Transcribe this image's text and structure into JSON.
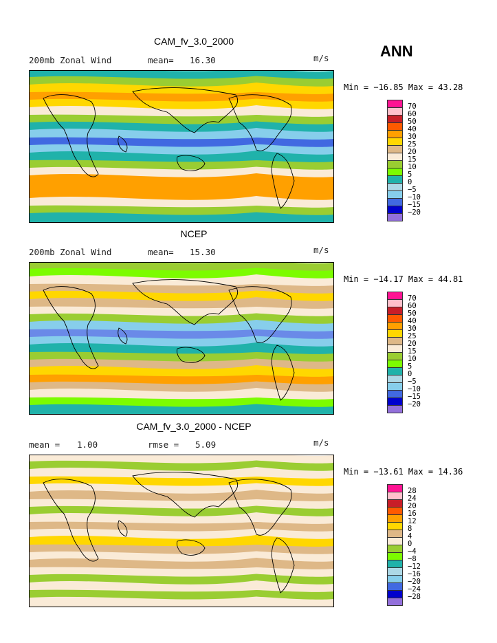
{
  "season": "ANN",
  "units": "m/s",
  "panels": [
    {
      "title": "CAM_fv_3.0_2000",
      "left_label": "200mb Zonal Wind",
      "stat_label": "mean=",
      "stat_value": "16.30",
      "min_max": "Min = −16.85 Max =   43.28",
      "legend_labels": [
        "70",
        "60",
        "50",
        "40",
        "30",
        "25",
        "20",
        "15",
        "10",
        "5",
        "0",
        "−5",
        "−10",
        "−15",
        "−20"
      ],
      "legend_colors": [
        "#ff1493",
        "#ffc0cb",
        "#c81e28",
        "#ff5a00",
        "#ffa000",
        "#ffd700",
        "#deb887",
        "#faebd7",
        "#9acd32",
        "#7cfc00",
        "#20b2aa",
        "#add8e6",
        "#87ceeb",
        "#4169e1",
        "#0000cd",
        "#9370db"
      ],
      "bands": [
        "#20b2aa",
        "#9acd32",
        "#ffd700",
        "#ffa000",
        "#ffd700",
        "#faebd7",
        "#9acd32",
        "#20b2aa",
        "#87ceeb",
        "#4169e1",
        "#87ceeb",
        "#20b2aa",
        "#9acd32",
        "#faebd7",
        "#ffa000",
        "#ffa000",
        "#ffa000",
        "#faebd7",
        "#9acd32",
        "#20b2aa"
      ]
    },
    {
      "title": "NCEP",
      "left_label": "200mb Zonal Wind",
      "stat_label": "mean=",
      "stat_value": "15.30",
      "min_max": "Min = −14.17 Max =   44.81",
      "legend_labels": [
        "70",
        "60",
        "50",
        "40",
        "30",
        "25",
        "20",
        "15",
        "10",
        "5",
        "0",
        "−5",
        "−10",
        "−15",
        "−20"
      ],
      "legend_colors": [
        "#ff1493",
        "#ffc0cb",
        "#c81e28",
        "#ff5a00",
        "#ffa000",
        "#ffd700",
        "#deb887",
        "#faebd7",
        "#9acd32",
        "#7cfc00",
        "#20b2aa",
        "#add8e6",
        "#87ceeb",
        "#4169e1",
        "#0000cd",
        "#9370db"
      ],
      "bands": [
        "#9acd32",
        "#7cfc00",
        "#faebd7",
        "#deb887",
        "#ffd700",
        "#deb887",
        "#faebd7",
        "#9acd32",
        "#87ceeb",
        "#6a8ae8",
        "#87ceeb",
        "#20b2aa",
        "#9acd32",
        "#deb887",
        "#ffd700",
        "#ffa000",
        "#deb887",
        "#faebd7",
        "#7cfc00",
        "#20b2aa"
      ]
    },
    {
      "title": "CAM_fv_3.0_2000 - NCEP",
      "left_label": "mean =",
      "left_value": "1.00",
      "stat_label": "rmse =",
      "stat_value": "5.09",
      "min_max": "Min = −13.61 Max =   14.36",
      "legend_labels": [
        "28",
        "24",
        "20",
        "16",
        "12",
        "8",
        "4",
        "0",
        "−4",
        "−8",
        "−12",
        "−16",
        "−20",
        "−24",
        "−28"
      ],
      "legend_colors": [
        "#ff1493",
        "#ffc0cb",
        "#c81e28",
        "#ff5a00",
        "#ffa000",
        "#ffd700",
        "#deb887",
        "#faebd7",
        "#9acd32",
        "#7cfc00",
        "#20b2aa",
        "#add8e6",
        "#87ceeb",
        "#4169e1",
        "#0000cd",
        "#9370db"
      ],
      "bands": [
        "#faebd7",
        "#9acd32",
        "#faebd7",
        "#ffd700",
        "#faebd7",
        "#deb887",
        "#faebd7",
        "#9acd32",
        "#faebd7",
        "#deb887",
        "#faebd7",
        "#ffd700",
        "#deb887",
        "#faebd7",
        "#deb887",
        "#faebd7",
        "#9acd32",
        "#faebd7",
        "#9acd32",
        "#faebd7"
      ]
    }
  ]
}
